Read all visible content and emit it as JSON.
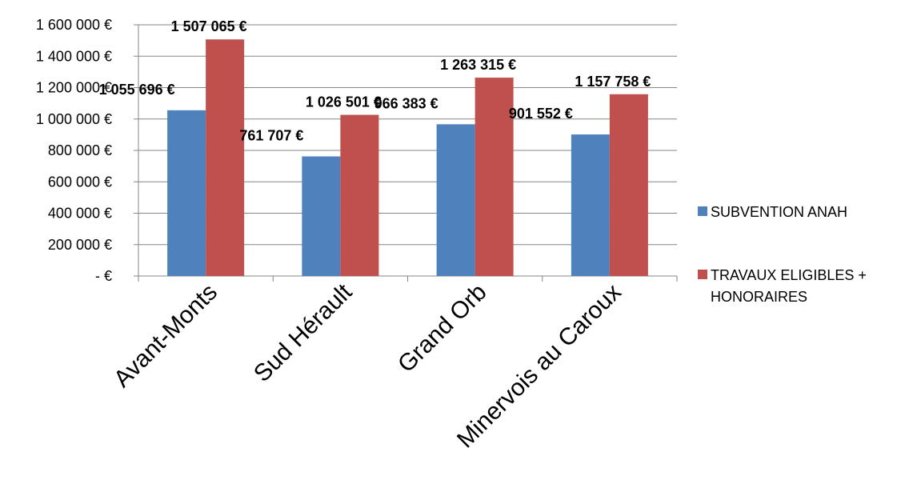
{
  "chart_data": {
    "type": "bar",
    "title": "",
    "xlabel": "",
    "ylabel": "",
    "categories": [
      "Avant-Monts",
      "Sud Hérault",
      "Grand Orb",
      "Minervois au Caroux"
    ],
    "series": [
      {
        "name": "SUBVENTION ANAH",
        "color": "#4F81BD",
        "values": [
          1055696,
          761707,
          966383,
          901552
        ],
        "labels": [
          "1 055 696 €",
          "761 707 €",
          "966 383 €",
          "901 552 €"
        ]
      },
      {
        "name": "TRAVAUX ELIGIBLES + HONORAIRES",
        "color": "#C0504D",
        "values": [
          1507065,
          1026501,
          1263315,
          1157758
        ],
        "labels": [
          "1 507 065 €",
          "1 026 501 €",
          "1 263 315 €",
          "1 157 758 €"
        ]
      }
    ],
    "ylim": [
      0,
      1600000
    ],
    "ytick_values": [
      0,
      200000,
      400000,
      600000,
      800000,
      1000000,
      1200000,
      1400000,
      1600000
    ],
    "ytick_labels": [
      "-  €",
      "200 000 €",
      "400 000 €",
      "600 000 €",
      "800 000 €",
      "1 000 000 €",
      "1 200 000 €",
      "1 400 000 €",
      "1 600 000 €"
    ],
    "legend_lines": [
      [
        "SUBVENTION ANAH"
      ],
      [
        "TRAVAUX ELIGIBLES +",
        "HONORAIRES"
      ]
    ],
    "grid": true,
    "legend_position": "right"
  }
}
